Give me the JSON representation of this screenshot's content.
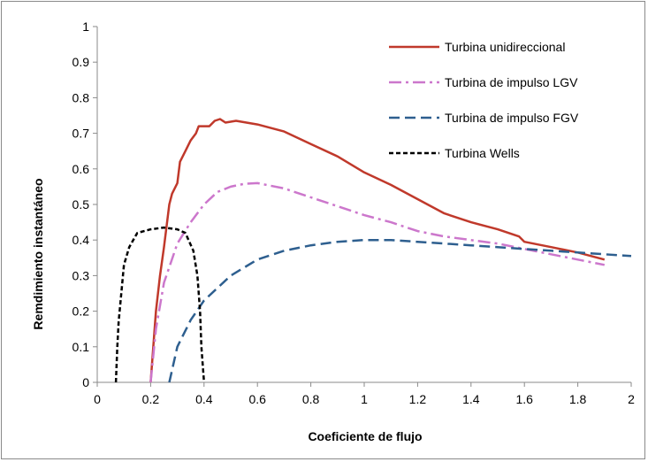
{
  "chart_data": {
    "type": "line",
    "title": "",
    "xlabel": "Coeficiente de flujo",
    "ylabel": "Remdimiento instantáneo",
    "xlim": [
      0,
      2
    ],
    "ylim": [
      0,
      1
    ],
    "xticks": [
      "0",
      "0.2",
      "0.4",
      "0.6",
      "0.8",
      "1",
      "1.2",
      "1.4",
      "1.6",
      "1.8",
      "2"
    ],
    "yticks": [
      "0",
      "0.1",
      "0.2",
      "0.3",
      "0.4",
      "0.5",
      "0.6",
      "0.7",
      "0.8",
      "0.9",
      "1"
    ],
    "grid": false,
    "legend_position": "top-right",
    "series": [
      {
        "name": "Turbina unidireccional",
        "color": "#c0392b",
        "dash": "solid",
        "points": [
          [
            0.2,
            0
          ],
          [
            0.21,
            0.1
          ],
          [
            0.22,
            0.2
          ],
          [
            0.235,
            0.3
          ],
          [
            0.25,
            0.38
          ],
          [
            0.26,
            0.44
          ],
          [
            0.27,
            0.5
          ],
          [
            0.28,
            0.53
          ],
          [
            0.3,
            0.56
          ],
          [
            0.31,
            0.62
          ],
          [
            0.33,
            0.65
          ],
          [
            0.35,
            0.68
          ],
          [
            0.37,
            0.7
          ],
          [
            0.38,
            0.72
          ],
          [
            0.4,
            0.72
          ],
          [
            0.42,
            0.72
          ],
          [
            0.44,
            0.735
          ],
          [
            0.46,
            0.74
          ],
          [
            0.48,
            0.73
          ],
          [
            0.52,
            0.735
          ],
          [
            0.6,
            0.725
          ],
          [
            0.7,
            0.705
          ],
          [
            0.8,
            0.67
          ],
          [
            0.9,
            0.635
          ],
          [
            1.0,
            0.59
          ],
          [
            1.1,
            0.555
          ],
          [
            1.2,
            0.515
          ],
          [
            1.3,
            0.475
          ],
          [
            1.4,
            0.45
          ],
          [
            1.5,
            0.43
          ],
          [
            1.58,
            0.41
          ],
          [
            1.6,
            0.395
          ],
          [
            1.7,
            0.38
          ],
          [
            1.8,
            0.365
          ],
          [
            1.9,
            0.345
          ]
        ]
      },
      {
        "name": "Turbina de impulso LGV",
        "color": "#cc77cc",
        "dash": "dashdot",
        "points": [
          [
            0.2,
            0
          ],
          [
            0.22,
            0.15
          ],
          [
            0.25,
            0.28
          ],
          [
            0.3,
            0.39
          ],
          [
            0.35,
            0.45
          ],
          [
            0.4,
            0.5
          ],
          [
            0.45,
            0.535
          ],
          [
            0.5,
            0.55
          ],
          [
            0.55,
            0.558
          ],
          [
            0.6,
            0.56
          ],
          [
            0.7,
            0.545
          ],
          [
            0.8,
            0.52
          ],
          [
            0.9,
            0.495
          ],
          [
            1.0,
            0.47
          ],
          [
            1.1,
            0.45
          ],
          [
            1.2,
            0.425
          ],
          [
            1.3,
            0.41
          ],
          [
            1.4,
            0.4
          ],
          [
            1.5,
            0.39
          ],
          [
            1.6,
            0.375
          ],
          [
            1.7,
            0.36
          ],
          [
            1.8,
            0.345
          ],
          [
            1.9,
            0.33
          ]
        ]
      },
      {
        "name": "Turbina de impulso FGV",
        "color": "#2e5f8f",
        "dash": "dash",
        "points": [
          [
            0.27,
            0
          ],
          [
            0.3,
            0.1
          ],
          [
            0.35,
            0.175
          ],
          [
            0.4,
            0.23
          ],
          [
            0.5,
            0.3
          ],
          [
            0.6,
            0.345
          ],
          [
            0.7,
            0.37
          ],
          [
            0.8,
            0.385
          ],
          [
            0.9,
            0.395
          ],
          [
            1.0,
            0.4
          ],
          [
            1.1,
            0.4
          ],
          [
            1.2,
            0.395
          ],
          [
            1.3,
            0.39
          ],
          [
            1.4,
            0.385
          ],
          [
            1.5,
            0.38
          ],
          [
            1.6,
            0.375
          ],
          [
            1.7,
            0.37
          ],
          [
            1.8,
            0.365
          ],
          [
            1.9,
            0.36
          ],
          [
            2.0,
            0.355
          ]
        ]
      },
      {
        "name": "Turbina Wells",
        "color": "#000000",
        "dash": "shortdash",
        "points": [
          [
            0.07,
            0
          ],
          [
            0.075,
            0.1
          ],
          [
            0.08,
            0.17
          ],
          [
            0.09,
            0.25
          ],
          [
            0.1,
            0.33
          ],
          [
            0.12,
            0.38
          ],
          [
            0.15,
            0.42
          ],
          [
            0.2,
            0.43
          ],
          [
            0.25,
            0.435
          ],
          [
            0.3,
            0.43
          ],
          [
            0.33,
            0.42
          ],
          [
            0.36,
            0.37
          ],
          [
            0.375,
            0.3
          ],
          [
            0.385,
            0.2
          ],
          [
            0.39,
            0.1
          ],
          [
            0.4,
            0
          ]
        ]
      }
    ]
  }
}
